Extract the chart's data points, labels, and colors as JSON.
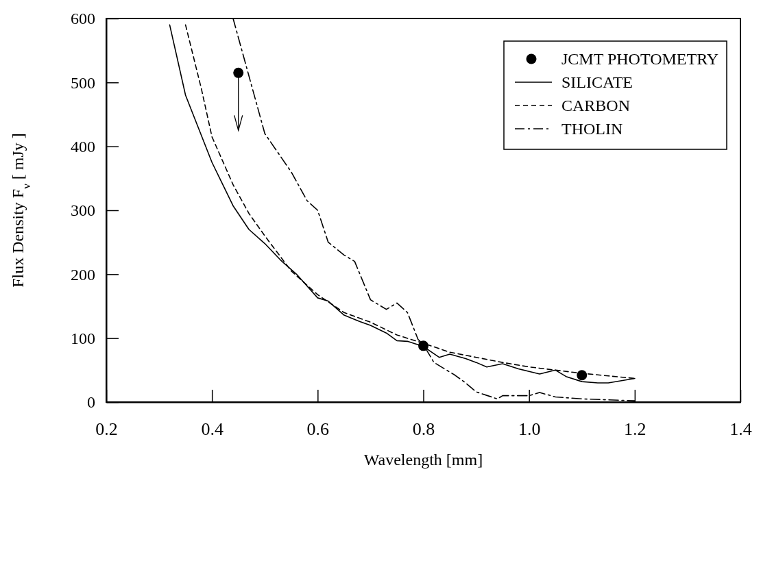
{
  "chart_data": {
    "type": "line",
    "xlabel": "Wavelength [mm]",
    "ylabel": "Flux Density F$_{ν}$ [ mJy ]",
    "xlim": [
      0.2,
      1.4
    ],
    "ylim": [
      0,
      600
    ],
    "xticks": [
      0.2,
      0.4,
      0.6,
      0.8,
      {
        "value": 1.0,
        "label": "1.0"
      },
      1.2,
      1.4
    ],
    "yticks": [
      0,
      100,
      200,
      300,
      400,
      500,
      600
    ],
    "legend": "top right",
    "grid": false,
    "series": [
      {
        "name": "JCMT PHOTOMETRY",
        "type": "scatter",
        "marker": "circle",
        "color": "#000000",
        "x": [
          0.45,
          0.8,
          1.1
        ],
        "values": [
          515,
          88,
          42
        ],
        "errors": [
          [
            425,
            515
          ],
          null,
          null
        ]
      },
      {
        "name": "SILICATE",
        "type": "line",
        "line_style": "solid",
        "marker": "none",
        "color": "#000000",
        "x": [
          0.32,
          0.35,
          0.4,
          0.44,
          0.47,
          0.5,
          0.53,
          0.56,
          0.6,
          0.62,
          0.65,
          0.68,
          0.7,
          0.73,
          0.75,
          0.77,
          0.8,
          0.83,
          0.85,
          0.88,
          0.9,
          0.92,
          0.95,
          0.98,
          1.0,
          1.02,
          1.05,
          1.07,
          1.1,
          1.13,
          1.15,
          1.2
        ],
        "values": [
          590,
          480,
          375,
          307,
          270,
          248,
          222,
          200,
          163,
          158,
          136,
          126,
          120,
          108,
          96,
          95,
          87,
          70,
          75,
          68,
          62,
          55,
          60,
          52,
          48,
          44,
          50,
          40,
          32,
          30,
          30,
          37
        ]
      },
      {
        "name": "CARBON",
        "type": "line",
        "line_style": "dashed",
        "marker": "none",
        "color": "#000000",
        "x": [
          0.35,
          0.38,
          0.4,
          0.44,
          0.47,
          0.5,
          0.55,
          0.6,
          0.65,
          0.7,
          0.75,
          0.8,
          0.85,
          0.9,
          0.95,
          1.0,
          1.05,
          1.1,
          1.15,
          1.2
        ],
        "values": [
          590,
          490,
          415,
          340,
          295,
          260,
          205,
          168,
          140,
          125,
          105,
          92,
          78,
          70,
          62,
          55,
          50,
          45,
          41,
          37
        ]
      },
      {
        "name": "THOLIN",
        "type": "line",
        "line_style": "dashdot",
        "marker": "none",
        "color": "#000000",
        "x": [
          0.44,
          0.47,
          0.5,
          0.55,
          0.58,
          0.6,
          0.62,
          0.65,
          0.67,
          0.7,
          0.73,
          0.75,
          0.77,
          0.79,
          0.8,
          0.82,
          0.86,
          0.88,
          0.9,
          0.94,
          0.95,
          1.0,
          1.02,
          1.05,
          1.1,
          1.2
        ],
        "values": [
          600,
          510,
          420,
          360,
          315,
          300,
          250,
          230,
          220,
          160,
          145,
          155,
          140,
          98,
          90,
          62,
          42,
          30,
          16,
          5,
          10,
          10,
          15,
          8,
          5,
          2
        ]
      }
    ]
  }
}
